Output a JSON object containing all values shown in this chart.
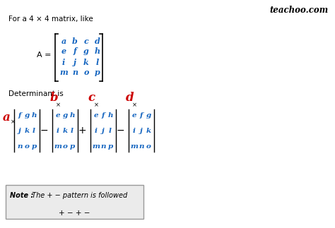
{
  "bg_color": "#ffffff",
  "text_color_black": "#000000",
  "text_color_blue": "#1565c0",
  "text_color_red": "#cc0000",
  "header_text": "For a 4 × 4 matrix, like",
  "det_text": "Determinant is",
  "note_text_bold": "Note :",
  "note_text_italic": " The + − pattern is followed",
  "pattern_text": "+ − + −",
  "matrix_entries": [
    [
      "a",
      "b",
      "c",
      "d"
    ],
    [
      "e",
      "f",
      "g",
      "h"
    ],
    [
      "i",
      "j",
      "k",
      "l"
    ],
    [
      "m",
      "n",
      "o",
      "p"
    ]
  ],
  "det1_entries": [
    "f",
    "g",
    "h",
    "j",
    "k",
    "l",
    "n",
    "o",
    "p"
  ],
  "det2_entries": [
    "e",
    "g",
    "h",
    "i",
    "k",
    "l",
    "m",
    "o",
    "p"
  ],
  "det3_entries": [
    "e",
    "f",
    "h",
    "i",
    "j",
    "l",
    "m",
    "n",
    "p"
  ],
  "det4_entries": [
    "e",
    "f",
    "g",
    "i",
    "j",
    "k",
    "m",
    "n",
    "o"
  ]
}
